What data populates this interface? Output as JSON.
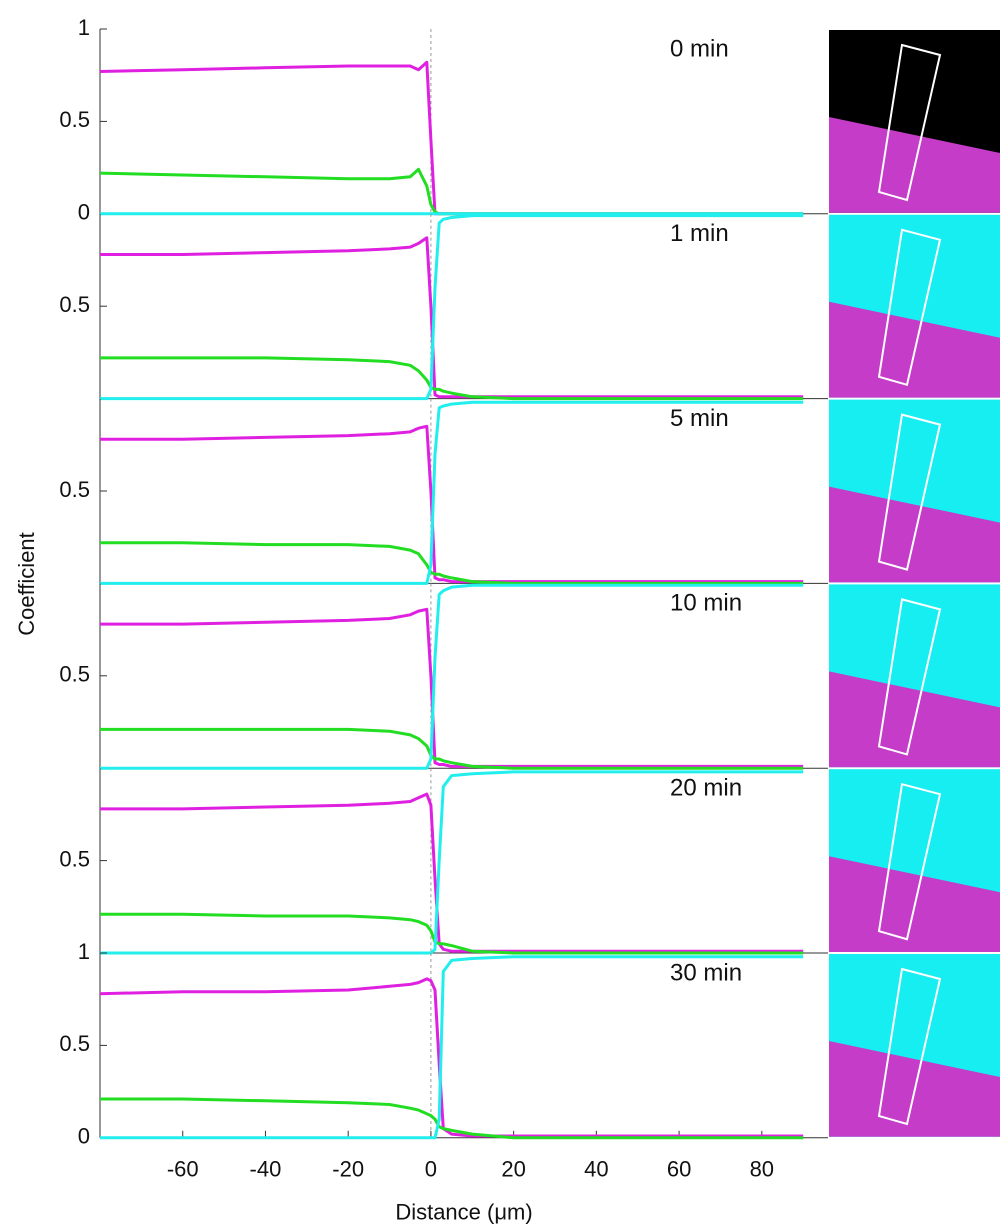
{
  "ylabel": "Coefficient",
  "chart_data": [
    {
      "type": "line",
      "title": "0 min",
      "xlim": [
        -80,
        96
      ],
      "ylim": [
        0,
        1
      ],
      "yticks": [
        0,
        0.5,
        1
      ],
      "vline": 0,
      "x": [
        -80,
        -60,
        -40,
        -20,
        -10,
        -5,
        -3,
        -1,
        0,
        1,
        2,
        3,
        5,
        10,
        20,
        40,
        60,
        80,
        90
      ],
      "series": [
        {
          "color": "#e020e0",
          "values": [
            0.77,
            0.78,
            0.79,
            0.8,
            0.8,
            0.8,
            0.78,
            0.82,
            0.4,
            0,
            0,
            0,
            0,
            0,
            0,
            0,
            0,
            0,
            0
          ]
        },
        {
          "color": "#22dd22",
          "values": [
            0.22,
            0.21,
            0.2,
            0.19,
            0.19,
            0.2,
            0.24,
            0.15,
            0.05,
            0.01,
            0,
            0,
            0,
            0,
            0,
            0,
            0,
            0,
            0
          ]
        },
        {
          "color": "#22eeee",
          "values": [
            0,
            0,
            0,
            0,
            0,
            0,
            0,
            0,
            0,
            0,
            0,
            0,
            0,
            0,
            0,
            0,
            0,
            0,
            0
          ]
        }
      ]
    },
    {
      "type": "line",
      "title": "1 min",
      "xlim": [
        -80,
        96
      ],
      "ylim": [
        0,
        1
      ],
      "yticks": [
        0.5
      ],
      "vline": 0,
      "x": [
        -80,
        -60,
        -40,
        -20,
        -10,
        -5,
        -3,
        -1,
        0,
        1,
        2,
        3,
        5,
        10,
        20,
        40,
        60,
        80,
        90
      ],
      "series": [
        {
          "color": "#e020e0",
          "values": [
            0.78,
            0.78,
            0.79,
            0.8,
            0.81,
            0.82,
            0.84,
            0.87,
            0.5,
            0.02,
            0.01,
            0.01,
            0.01,
            0.01,
            0.01,
            0.01,
            0.01,
            0.01,
            0.01
          ]
        },
        {
          "color": "#22dd22",
          "values": [
            0.22,
            0.22,
            0.22,
            0.21,
            0.2,
            0.18,
            0.15,
            0.1,
            0.06,
            0.05,
            0.05,
            0.04,
            0.03,
            0.01,
            0,
            0,
            0,
            0,
            0
          ]
        },
        {
          "color": "#22eeee",
          "values": [
            0,
            0,
            0,
            0,
            0,
            0,
            0,
            0,
            0.05,
            0.6,
            0.95,
            0.97,
            0.98,
            0.99,
            0.99,
            0.99,
            0.99,
            0.99,
            0.99
          ]
        }
      ]
    },
    {
      "type": "line",
      "title": "5 min",
      "xlim": [
        -80,
        96
      ],
      "ylim": [
        0,
        1
      ],
      "yticks": [
        0.5
      ],
      "vline": 0,
      "x": [
        -80,
        -60,
        -40,
        -20,
        -10,
        -5,
        -3,
        -1,
        0,
        1,
        2,
        3,
        5,
        10,
        20,
        40,
        60,
        80,
        90
      ],
      "series": [
        {
          "color": "#e020e0",
          "values": [
            0.78,
            0.78,
            0.79,
            0.8,
            0.81,
            0.82,
            0.84,
            0.85,
            0.5,
            0.03,
            0.02,
            0.02,
            0.01,
            0.01,
            0.01,
            0.01,
            0.01,
            0.01,
            0.01
          ]
        },
        {
          "color": "#22dd22",
          "values": [
            0.22,
            0.22,
            0.21,
            0.21,
            0.2,
            0.18,
            0.16,
            0.1,
            0.06,
            0.05,
            0.05,
            0.04,
            0.03,
            0.01,
            0,
            0,
            0,
            0,
            0
          ]
        },
        {
          "color": "#22eeee",
          "values": [
            0,
            0,
            0,
            0,
            0,
            0,
            0,
            0,
            0.1,
            0.7,
            0.95,
            0.96,
            0.97,
            0.98,
            0.98,
            0.98,
            0.98,
            0.98,
            0.98
          ]
        }
      ]
    },
    {
      "type": "line",
      "title": "10 min",
      "xlim": [
        -80,
        96
      ],
      "ylim": [
        0,
        1
      ],
      "yticks": [
        0.5
      ],
      "vline": 0,
      "x": [
        -80,
        -60,
        -40,
        -20,
        -10,
        -5,
        -3,
        -1,
        0,
        1,
        2,
        3,
        5,
        10,
        20,
        40,
        60,
        80,
        90
      ],
      "series": [
        {
          "color": "#e020e0",
          "values": [
            0.78,
            0.78,
            0.79,
            0.8,
            0.81,
            0.83,
            0.85,
            0.86,
            0.5,
            0.03,
            0.02,
            0.02,
            0.01,
            0.01,
            0.01,
            0.01,
            0.01,
            0.01,
            0.01
          ]
        },
        {
          "color": "#22dd22",
          "values": [
            0.21,
            0.21,
            0.21,
            0.21,
            0.2,
            0.18,
            0.16,
            0.12,
            0.07,
            0.05,
            0.05,
            0.04,
            0.03,
            0.01,
            0,
            0,
            0,
            0,
            0
          ]
        },
        {
          "color": "#22eeee",
          "values": [
            0,
            0,
            0,
            0,
            0,
            0,
            0,
            0,
            0.05,
            0.6,
            0.94,
            0.96,
            0.98,
            0.99,
            0.99,
            0.99,
            0.99,
            0.99,
            0.99
          ]
        }
      ]
    },
    {
      "type": "line",
      "title": "20 min",
      "xlim": [
        -80,
        96
      ],
      "ylim": [
        0,
        1
      ],
      "yticks": [
        0.5
      ],
      "vline": 0,
      "x": [
        -80,
        -60,
        -40,
        -20,
        -10,
        -5,
        -3,
        -1,
        0,
        1,
        2,
        3,
        5,
        10,
        20,
        40,
        60,
        80,
        90
      ],
      "series": [
        {
          "color": "#e020e0",
          "values": [
            0.78,
            0.78,
            0.79,
            0.8,
            0.81,
            0.82,
            0.84,
            0.86,
            0.8,
            0.4,
            0.05,
            0.02,
            0.01,
            0.01,
            0.01,
            0.01,
            0.01,
            0.01,
            0.01
          ]
        },
        {
          "color": "#22dd22",
          "values": [
            0.21,
            0.21,
            0.2,
            0.2,
            0.19,
            0.18,
            0.17,
            0.15,
            0.12,
            0.06,
            0.05,
            0.05,
            0.04,
            0.01,
            0,
            0,
            0,
            0,
            0
          ]
        },
        {
          "color": "#22eeee",
          "values": [
            0,
            0,
            0,
            0,
            0,
            0,
            0,
            0,
            0,
            0.02,
            0.5,
            0.9,
            0.96,
            0.97,
            0.98,
            0.98,
            0.98,
            0.98,
            0.98
          ]
        }
      ]
    },
    {
      "type": "line",
      "title": "30 min",
      "xlim": [
        -80,
        96
      ],
      "ylim": [
        0,
        1
      ],
      "yticks": [
        0,
        0.5,
        1
      ],
      "vline": 0,
      "xticks": [
        -60,
        -40,
        -20,
        0,
        20,
        40,
        60,
        80
      ],
      "xlabel": "Distance (μm)",
      "x": [
        -80,
        -60,
        -40,
        -20,
        -10,
        -5,
        -3,
        -1,
        0,
        1,
        2,
        3,
        5,
        10,
        20,
        40,
        60,
        80,
        90
      ],
      "series": [
        {
          "color": "#e020e0",
          "values": [
            0.78,
            0.79,
            0.79,
            0.8,
            0.82,
            0.83,
            0.84,
            0.86,
            0.85,
            0.8,
            0.4,
            0.05,
            0.02,
            0.01,
            0.01,
            0.01,
            0.01,
            0.01,
            0.01
          ]
        },
        {
          "color": "#22dd22",
          "values": [
            0.21,
            0.21,
            0.2,
            0.19,
            0.18,
            0.16,
            0.15,
            0.13,
            0.12,
            0.1,
            0.06,
            0.05,
            0.04,
            0.02,
            0,
            0,
            0,
            0,
            0
          ]
        },
        {
          "color": "#22eeee",
          "values": [
            0,
            0,
            0,
            0,
            0,
            0,
            0,
            0,
            0,
            0,
            0.1,
            0.9,
            0.96,
            0.97,
            0.98,
            0.98,
            0.98,
            0.98,
            0.98
          ]
        }
      ]
    }
  ]
}
